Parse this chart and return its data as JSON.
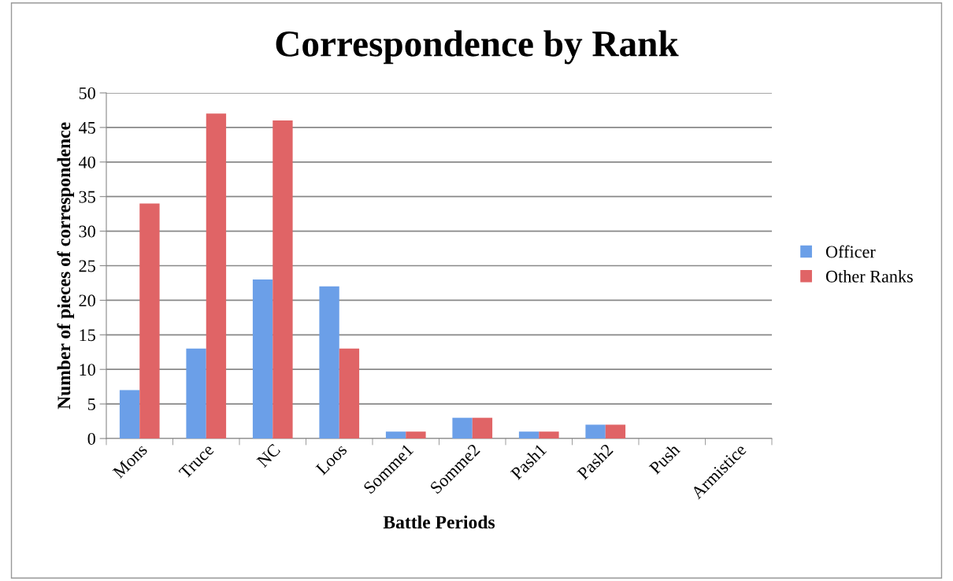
{
  "chart_data": {
    "type": "bar",
    "title": "Correspondence by Rank",
    "xlabel": "Battle Periods",
    "ylabel": "Number of pieces of correspondence",
    "categories": [
      "Mons",
      "Truce",
      "NC",
      "Loos",
      "Somme1",
      "Somme2",
      "Pash1",
      "Pash2",
      "Push",
      "Armistice"
    ],
    "series": [
      {
        "name": "Officer",
        "color": "#6b9fe8",
        "values": [
          7,
          13,
          23,
          22,
          1,
          3,
          1,
          2,
          0,
          0
        ]
      },
      {
        "name": "Other Ranks",
        "color": "#e06466",
        "values": [
          34,
          47,
          46,
          13,
          1,
          3,
          1,
          2,
          0,
          0
        ]
      }
    ],
    "ylim": [
      0,
      50
    ],
    "yticks": [
      0,
      5,
      10,
      15,
      20,
      25,
      30,
      35,
      40,
      45,
      50
    ],
    "grid": "y",
    "legend": "right"
  }
}
